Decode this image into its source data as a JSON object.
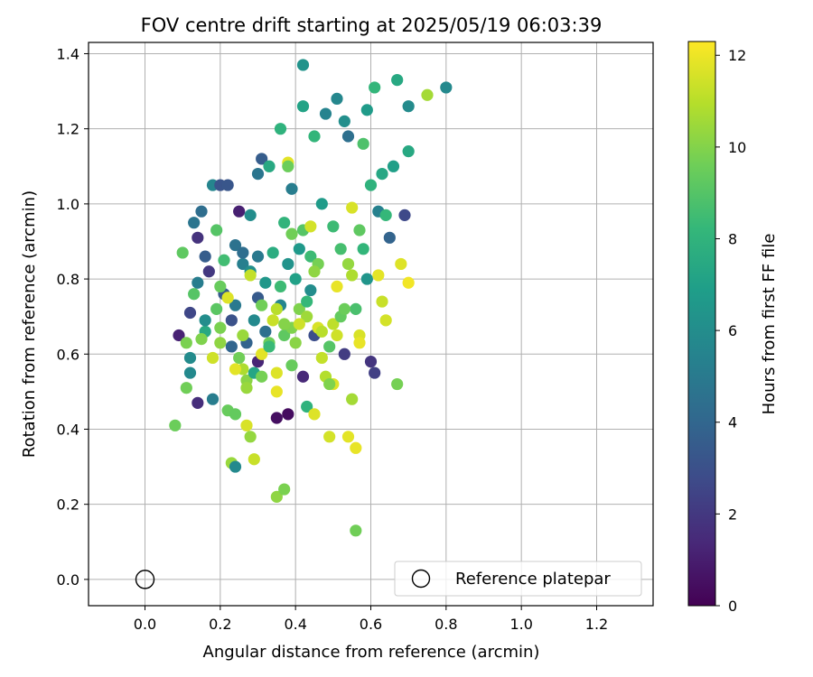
{
  "chart_data": {
    "type": "scatter",
    "title": "FOV centre drift starting at 2025/05/19 06:03:39",
    "xlabel": "Angular distance from reference (arcmin)",
    "ylabel": "Rotation from reference (arcmin)",
    "xlim": [
      -0.15,
      1.35
    ],
    "ylim": [
      -0.07,
      1.43
    ],
    "x_ticks": [
      0.0,
      0.2,
      0.4,
      0.6,
      0.8,
      1.0,
      1.2
    ],
    "x_tick_labels": [
      "0.0",
      "0.2",
      "0.4",
      "0.6",
      "0.8",
      "1.0",
      "1.2"
    ],
    "y_ticks": [
      0.0,
      0.2,
      0.4,
      0.6,
      0.8,
      1.0,
      1.2,
      1.4
    ],
    "y_tick_labels": [
      "0.0",
      "0.2",
      "0.4",
      "0.6",
      "0.8",
      "1.0",
      "1.2",
      "1.4"
    ],
    "grid": true,
    "legend": {
      "placement": "lower-right",
      "entries": [
        "Reference platepar"
      ]
    },
    "reference_point": {
      "x": 0.0,
      "y": 0.0,
      "label": "Reference platepar"
    },
    "colorbar": {
      "label": "Hours from first FF file",
      "range": [
        0,
        12.3
      ],
      "ticks": [
        0,
        2,
        4,
        6,
        8,
        10,
        12
      ],
      "tick_labels": [
        "0",
        "2",
        "4",
        "6",
        "8",
        "10",
        "12"
      ],
      "colormap": "viridis",
      "stops": [
        "#440154",
        "#482878",
        "#3e4a89",
        "#31688e",
        "#26828e",
        "#1f9e89",
        "#35b779",
        "#6ece58",
        "#b5de2b",
        "#fde725"
      ]
    },
    "series": [
      {
        "points": [
          [
            0.08,
            0.41,
            9.5
          ],
          [
            0.1,
            0.87,
            9.2
          ],
          [
            0.11,
            0.51,
            9.6
          ],
          [
            0.12,
            0.55,
            5.8
          ],
          [
            0.12,
            0.59,
            5.9
          ],
          [
            0.12,
            0.71,
            2.6
          ],
          [
            0.13,
            0.76,
            9.0
          ],
          [
            0.13,
            0.95,
            4.8
          ],
          [
            0.14,
            0.79,
            5.2
          ],
          [
            0.14,
            0.47,
            1.6
          ],
          [
            0.14,
            0.91,
            1.8
          ],
          [
            0.15,
            0.98,
            4.4
          ],
          [
            0.16,
            0.66,
            7.4
          ],
          [
            0.16,
            0.69,
            6.0
          ],
          [
            0.16,
            0.86,
            3.6
          ],
          [
            0.17,
            0.82,
            2.0
          ],
          [
            0.18,
            1.05,
            5.6
          ],
          [
            0.18,
            0.48,
            5.2
          ],
          [
            0.19,
            0.93,
            9.0
          ],
          [
            0.19,
            0.72,
            9.1
          ],
          [
            0.2,
            0.63,
            10.2
          ],
          [
            0.2,
            0.67,
            9.8
          ],
          [
            0.2,
            1.05,
            3.2
          ],
          [
            0.21,
            0.85,
            8.5
          ],
          [
            0.21,
            0.76,
            3.5
          ],
          [
            0.22,
            1.05,
            3.3
          ],
          [
            0.22,
            0.45,
            9.4
          ],
          [
            0.23,
            0.31,
            10.4
          ],
          [
            0.23,
            0.62,
            4.0
          ],
          [
            0.23,
            0.69,
            3.1
          ],
          [
            0.24,
            0.3,
            5.8
          ],
          [
            0.24,
            0.44,
            9.3
          ],
          [
            0.24,
            0.73,
            5.0
          ],
          [
            0.24,
            0.89,
            4.6
          ],
          [
            0.25,
            0.59,
            9.6
          ],
          [
            0.25,
            0.98,
            1.1
          ],
          [
            0.26,
            0.56,
            10.8
          ],
          [
            0.26,
            0.84,
            5.3
          ],
          [
            0.26,
            0.87,
            4.4
          ],
          [
            0.27,
            0.53,
            10.1
          ],
          [
            0.27,
            0.51,
            10.4
          ],
          [
            0.27,
            0.41,
            11.6
          ],
          [
            0.27,
            0.63,
            3.9
          ],
          [
            0.28,
            0.38,
            10.3
          ],
          [
            0.28,
            0.97,
            6.0
          ],
          [
            0.28,
            0.82,
            6.1
          ],
          [
            0.29,
            0.55,
            7.2
          ],
          [
            0.29,
            0.32,
            11.3
          ],
          [
            0.29,
            0.69,
            5.8
          ],
          [
            0.3,
            0.75,
            3.5
          ],
          [
            0.3,
            1.08,
            4.8
          ],
          [
            0.3,
            0.86,
            5.0
          ],
          [
            0.3,
            0.58,
            1.3
          ],
          [
            0.31,
            0.6,
            11.8
          ],
          [
            0.31,
            1.12,
            3.6
          ],
          [
            0.31,
            0.73,
            9.6
          ],
          [
            0.32,
            0.66,
            4.5
          ],
          [
            0.32,
            0.79,
            6.5
          ],
          [
            0.33,
            1.1,
            7.4
          ],
          [
            0.33,
            0.63,
            9.5
          ],
          [
            0.34,
            0.69,
            11.3
          ],
          [
            0.34,
            0.87,
            7.6
          ],
          [
            0.35,
            0.43,
            0.5
          ],
          [
            0.35,
            0.22,
            10.2
          ],
          [
            0.35,
            0.55,
            11.7
          ],
          [
            0.35,
            0.5,
            11.9
          ],
          [
            0.36,
            0.73,
            5.6
          ],
          [
            0.36,
            1.2,
            7.9
          ],
          [
            0.36,
            0.78,
            8.4
          ],
          [
            0.37,
            0.24,
            9.8
          ],
          [
            0.37,
            0.95,
            8.0
          ],
          [
            0.37,
            0.65,
            9.2
          ],
          [
            0.38,
            0.44,
            0.4
          ],
          [
            0.38,
            1.11,
            11.8
          ],
          [
            0.38,
            1.1,
            9.5
          ],
          [
            0.38,
            0.84,
            6.3
          ],
          [
            0.39,
            0.67,
            9.9
          ],
          [
            0.39,
            0.92,
            9.6
          ],
          [
            0.39,
            1.04,
            5.2
          ],
          [
            0.4,
            0.63,
            10.1
          ],
          [
            0.4,
            0.8,
            7.0
          ],
          [
            0.41,
            0.88,
            6.6
          ],
          [
            0.41,
            0.72,
            9.9
          ],
          [
            0.42,
            1.37,
            6.3
          ],
          [
            0.42,
            0.54,
            1.4
          ],
          [
            0.42,
            0.93,
            9.0
          ],
          [
            0.42,
            1.26,
            7.1
          ],
          [
            0.43,
            0.46,
            7.9
          ],
          [
            0.43,
            0.7,
            10.5
          ],
          [
            0.44,
            0.94,
            11.5
          ],
          [
            0.44,
            0.86,
            8.4
          ],
          [
            0.44,
            0.77,
            6.0
          ],
          [
            0.45,
            0.44,
            11.7
          ],
          [
            0.45,
            1.18,
            8.1
          ],
          [
            0.45,
            0.65,
            2.9
          ],
          [
            0.46,
            0.67,
            11.6
          ],
          [
            0.46,
            0.84,
            9.7
          ],
          [
            0.47,
            0.59,
            11.2
          ],
          [
            0.47,
            1.0,
            6.7
          ],
          [
            0.48,
            0.54,
            10.9
          ],
          [
            0.48,
            1.24,
            5.5
          ],
          [
            0.49,
            0.38,
            11.5
          ],
          [
            0.49,
            0.62,
            9.0
          ],
          [
            0.5,
            0.68,
            11.1
          ],
          [
            0.5,
            0.52,
            11.7
          ],
          [
            0.5,
            0.94,
            8.4
          ],
          [
            0.51,
            1.28,
            5.7
          ],
          [
            0.51,
            0.78,
            11.9
          ],
          [
            0.52,
            0.7,
            9.3
          ],
          [
            0.52,
            0.88,
            8.6
          ],
          [
            0.53,
            0.6,
            2.2
          ],
          [
            0.53,
            1.22,
            6.1
          ],
          [
            0.54,
            0.38,
            11.8
          ],
          [
            0.54,
            1.18,
            4.5
          ],
          [
            0.54,
            0.84,
            10.3
          ],
          [
            0.55,
            0.99,
            11.6
          ],
          [
            0.55,
            0.48,
            10.6
          ],
          [
            0.56,
            0.13,
            9.6
          ],
          [
            0.56,
            0.35,
            11.9
          ],
          [
            0.56,
            0.72,
            8.7
          ],
          [
            0.57,
            0.65,
            11.6
          ],
          [
            0.57,
            0.63,
            11.9
          ],
          [
            0.58,
            1.16,
            8.8
          ],
          [
            0.58,
            0.88,
            8.1
          ],
          [
            0.59,
            0.8,
            6.4
          ],
          [
            0.59,
            1.25,
            6.7
          ],
          [
            0.6,
            0.58,
            1.9
          ],
          [
            0.6,
            1.05,
            7.9
          ],
          [
            0.61,
            1.31,
            8.1
          ],
          [
            0.61,
            0.55,
            2.3
          ],
          [
            0.62,
            0.98,
            5.4
          ],
          [
            0.62,
            0.81,
            11.8
          ],
          [
            0.63,
            1.08,
            7.3
          ],
          [
            0.63,
            0.74,
            11.3
          ],
          [
            0.64,
            0.69,
            11.5
          ],
          [
            0.64,
            0.97,
            8.2
          ],
          [
            0.65,
            0.91,
            3.9
          ],
          [
            0.66,
            1.1,
            6.9
          ],
          [
            0.67,
            0.52,
            9.7
          ],
          [
            0.67,
            1.33,
            7.4
          ],
          [
            0.68,
            0.84,
            11.7
          ],
          [
            0.69,
            0.97,
            2.7
          ],
          [
            0.7,
            1.26,
            5.9
          ],
          [
            0.7,
            1.14,
            7.4
          ],
          [
            0.7,
            0.79,
            12.1
          ],
          [
            0.75,
            1.29,
            10.6
          ],
          [
            0.8,
            1.31,
            5.8
          ],
          [
            0.09,
            0.65,
            1.2
          ],
          [
            0.11,
            0.63,
            9.8
          ],
          [
            0.15,
            0.64,
            9.9
          ],
          [
            0.18,
            0.59,
            11.4
          ],
          [
            0.2,
            0.78,
            9.4
          ],
          [
            0.22,
            0.75,
            11.7
          ],
          [
            0.24,
            0.56,
            11.8
          ],
          [
            0.26,
            0.65,
            10.4
          ],
          [
            0.28,
            0.81,
            11.2
          ],
          [
            0.31,
            0.54,
            9.7
          ],
          [
            0.33,
            0.62,
            8.3
          ],
          [
            0.35,
            0.72,
            11.0
          ],
          [
            0.37,
            0.68,
            10.0
          ],
          [
            0.39,
            0.57,
            9.4
          ],
          [
            0.41,
            0.68,
            11.4
          ],
          [
            0.43,
            0.74,
            8.2
          ],
          [
            0.45,
            0.82,
            10.2
          ],
          [
            0.47,
            0.66,
            11.0
          ],
          [
            0.49,
            0.52,
            9.9
          ],
          [
            0.51,
            0.65,
            11.4
          ],
          [
            0.53,
            0.72,
            9.5
          ],
          [
            0.55,
            0.81,
            10.8
          ],
          [
            0.57,
            0.93,
            9.2
          ]
        ]
      }
    ]
  }
}
